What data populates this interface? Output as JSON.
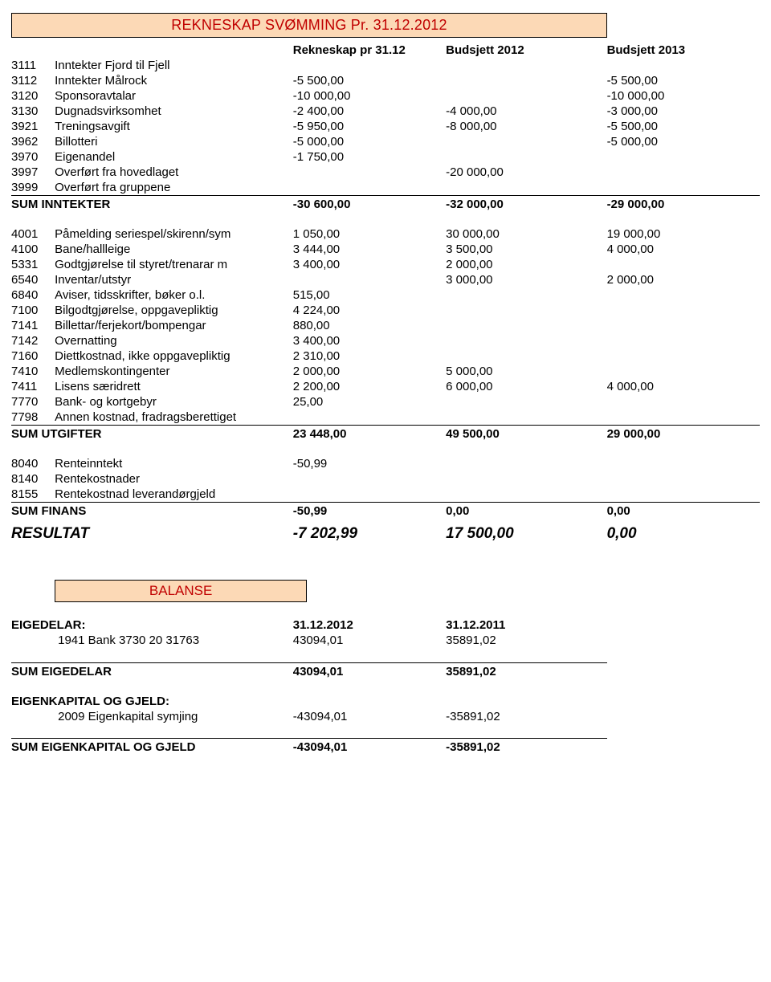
{
  "title": "REKNESKAP SVØMMING Pr. 31.12.2012",
  "headers": {
    "c1": "Rekneskap pr 31.12",
    "c2": "Budsjett 2012",
    "c3": "Budsjett 2013"
  },
  "inntekter": [
    {
      "code": "3111",
      "desc": "Inntekter Fjord  til Fjell"
    },
    {
      "code": "3112",
      "desc": "Inntekter Målrock",
      "v1": "-5 500,00",
      "v3": "-5 500,00"
    },
    {
      "code": "3120",
      "desc": "Sponsoravtalar",
      "v1": "-10 000,00",
      "v3": "-10 000,00"
    },
    {
      "code": "3130",
      "desc": "Dugnadsvirksomhet",
      "v1": "-2 400,00",
      "v2": "-4 000,00",
      "v3": "-3 000,00"
    },
    {
      "code": "3921",
      "desc": "Treningsavgift",
      "v1": "-5 950,00",
      "v2": "-8 000,00",
      "v3": "-5 500,00"
    },
    {
      "code": "3962",
      "desc": "Billotteri",
      "v1": "-5 000,00",
      "v3": "-5 000,00"
    },
    {
      "code": "3970",
      "desc": "Eigenandel",
      "v1": "-1 750,00"
    },
    {
      "code": "3997",
      "desc": "Overført fra hovedlaget",
      "v2": "-20 000,00"
    },
    {
      "code": "3999",
      "desc": "Overført fra gruppene"
    }
  ],
  "sumInntekter": {
    "label": "SUM INNTEKTER",
    "v1": "-30 600,00",
    "v2": "-32 000,00",
    "v3": "-29 000,00"
  },
  "utgifter": [
    {
      "code": "4001",
      "desc": "Påmelding seriespel/skirenn/sym",
      "v1": "1 050,00",
      "v2": "30 000,00",
      "v3": "19 000,00"
    },
    {
      "code": "4100",
      "desc": "Bane/hallleige",
      "v1": "3 444,00",
      "v2": "3 500,00",
      "v3": "4 000,00"
    },
    {
      "code": "5331",
      "desc": "Godtgjørelse til styret/trenarar m",
      "v1": "3 400,00",
      "v2": "2 000,00"
    },
    {
      "code": "6540",
      "desc": "Inventar/utstyr",
      "v2": "3 000,00",
      "v3": "2 000,00"
    },
    {
      "code": "6840",
      "desc": "Aviser, tidsskrifter, bøker o.l.",
      "v1": "515,00"
    },
    {
      "code": "7100",
      "desc": "Bilgodtgjørelse, oppgavepliktig",
      "v1": "4 224,00"
    },
    {
      "code": "7141",
      "desc": "Billettar/ferjekort/bompengar",
      "v1": "880,00"
    },
    {
      "code": "7142",
      "desc": "Overnatting",
      "v1": "3 400,00"
    },
    {
      "code": "7160",
      "desc": "Diettkostnad, ikke oppgavepliktig",
      "v1": "2 310,00"
    },
    {
      "code": "7410",
      "desc": "Medlemskontingenter",
      "v1": "2 000,00",
      "v2": "5 000,00"
    },
    {
      "code": "7411",
      "desc": "Lisens særidrett",
      "v1": "2 200,00",
      "v2": "6 000,00",
      "v3": "4 000,00"
    },
    {
      "code": "7770",
      "desc": "Bank- og kortgebyr",
      "v1": "25,00"
    },
    {
      "code": "7798",
      "desc": "Annen kostnad, fradragsberettiget"
    }
  ],
  "sumUtgifter": {
    "label": "SUM UTGIFTER",
    "v1": "23 448,00",
    "v2": "49 500,00",
    "v3": "29 000,00"
  },
  "finans": [
    {
      "code": "8040",
      "desc": "Renteinntekt",
      "v1": "-50,99"
    },
    {
      "code": "8140",
      "desc": "Rentekostnader"
    },
    {
      "code": "8155",
      "desc": "Rentekostnad leverandørgjeld"
    }
  ],
  "sumFinans": {
    "label": "SUM FINANS",
    "v1": "-50,99",
    "v2": "0,00",
    "v3": "0,00"
  },
  "resultat": {
    "label": "RESULTAT",
    "v1": "-7 202,99",
    "v2": "17 500,00",
    "v3": "0,00"
  },
  "balanse": {
    "title": "BALANSE",
    "hdr": {
      "label": "EIGEDELAR:",
      "c1": "31.12.2012",
      "c2": "31.12.2011"
    },
    "rows": [
      {
        "desc": "1941 Bank 3730 20 31763",
        "v1": "43094,01",
        "v2": "35891,02"
      }
    ],
    "sum": {
      "label": "SUM EIGEDELAR",
      "v1": "43094,01",
      "v2": "35891,02"
    },
    "gjeld": {
      "hdr": "EIGENKAPITAL OG GJELD:",
      "rows": [
        {
          "desc": "2009 Eigenkapital symjing",
          "v1": "-43094,01",
          "v2": "-35891,02"
        }
      ],
      "sum": {
        "label": "SUM EIGENKAPITAL OG GJELD",
        "v1": "-43094,01",
        "v2": "-35891,02"
      }
    }
  }
}
